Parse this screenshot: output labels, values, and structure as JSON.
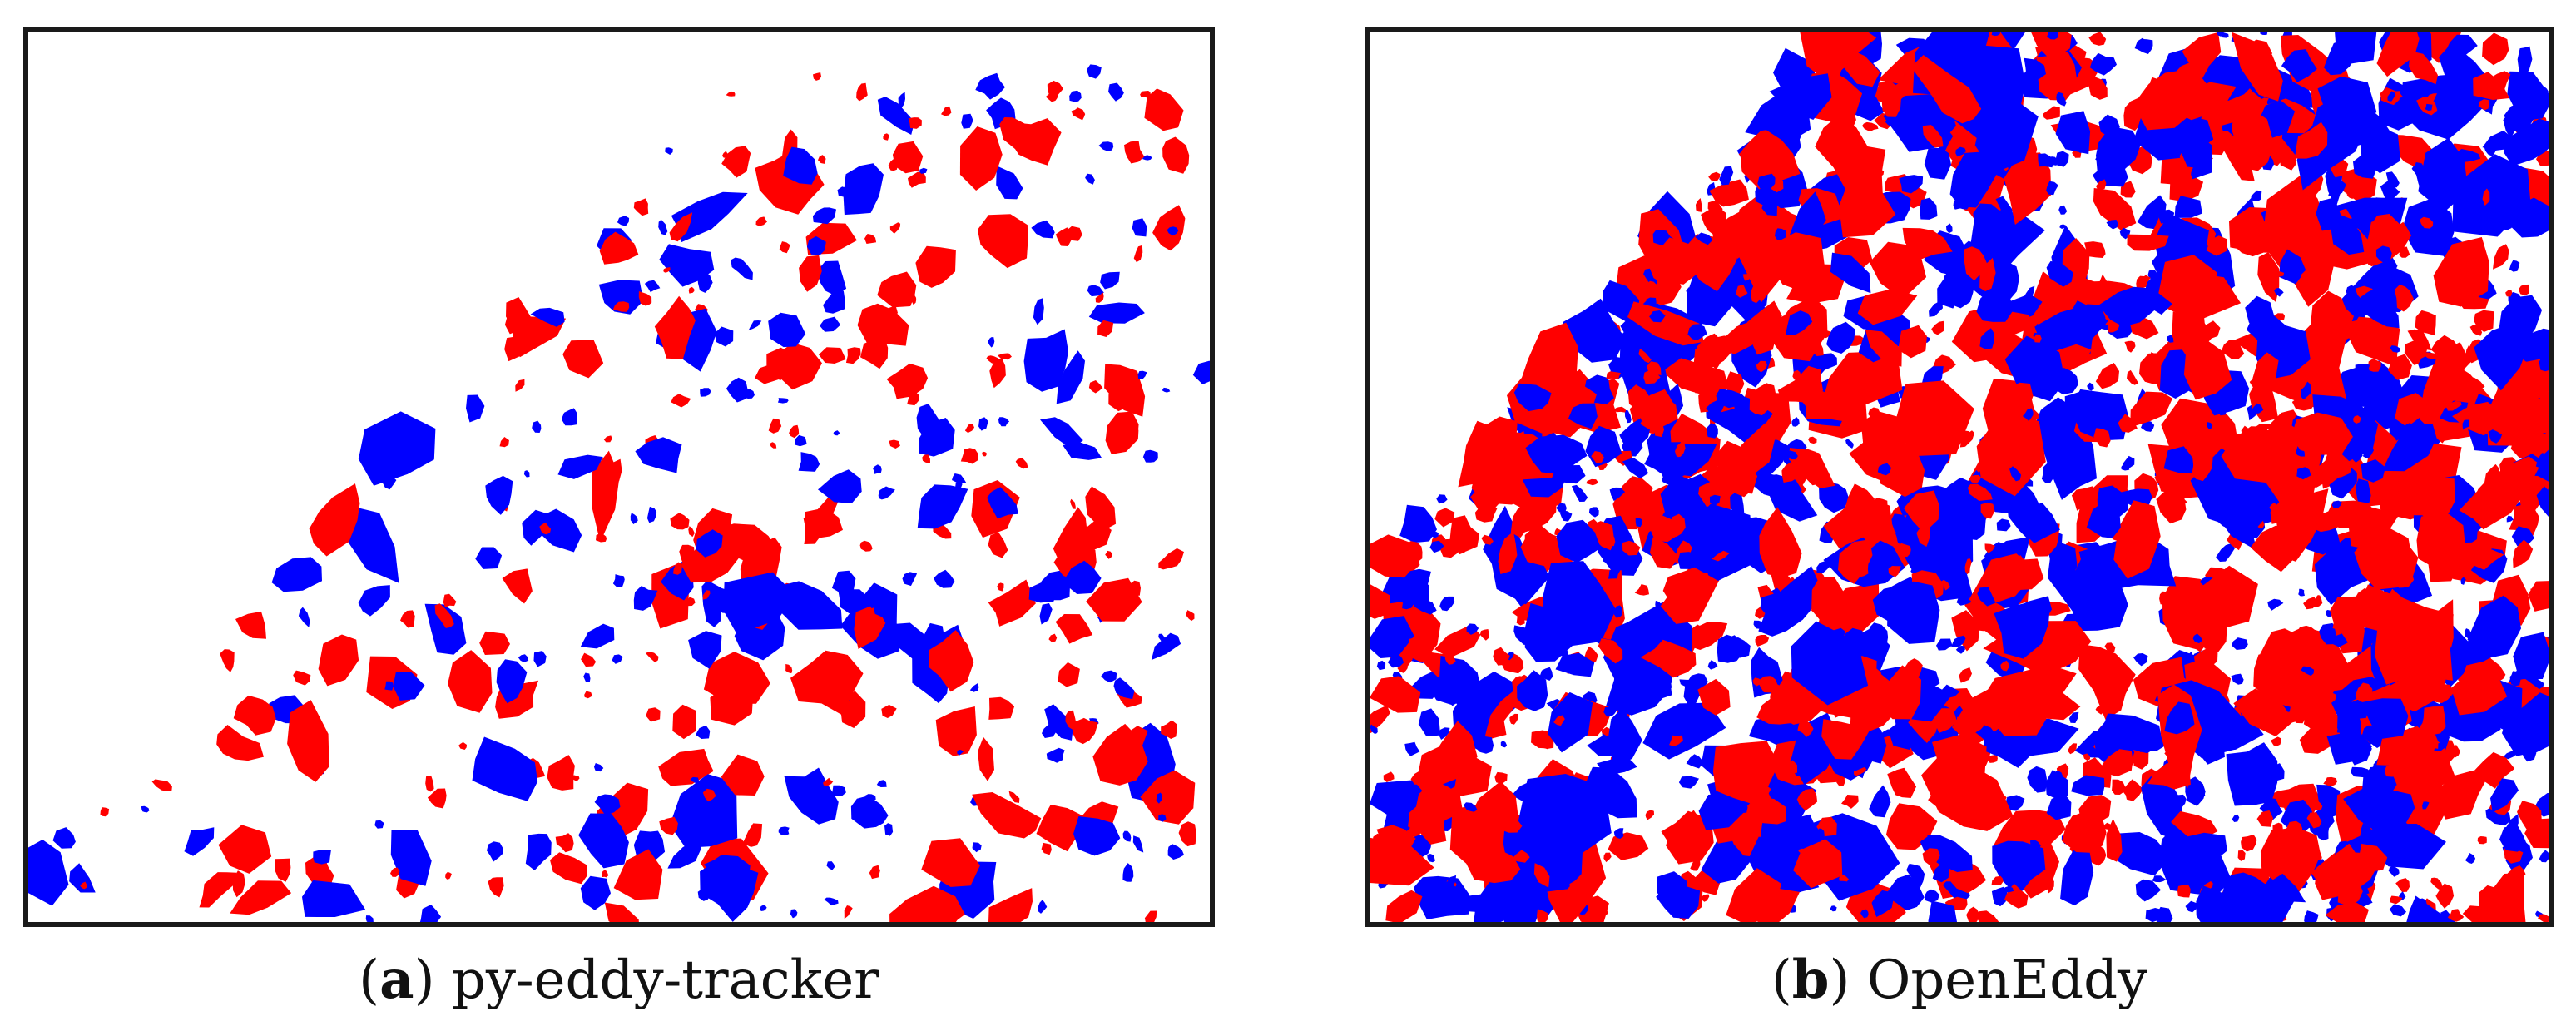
{
  "panels": [
    {
      "id": "a",
      "caption_letter": "a",
      "caption_text": "py-eddy-tracker",
      "colors": {
        "anticyclonic": "#ff0000",
        "cyclonic": "#0000ff"
      }
    },
    {
      "id": "b",
      "caption_letter": "b",
      "caption_text": "OpenEddy",
      "colors": {
        "anticyclonic": "#ff0000",
        "cyclonic": "#0000ff"
      }
    }
  ]
}
